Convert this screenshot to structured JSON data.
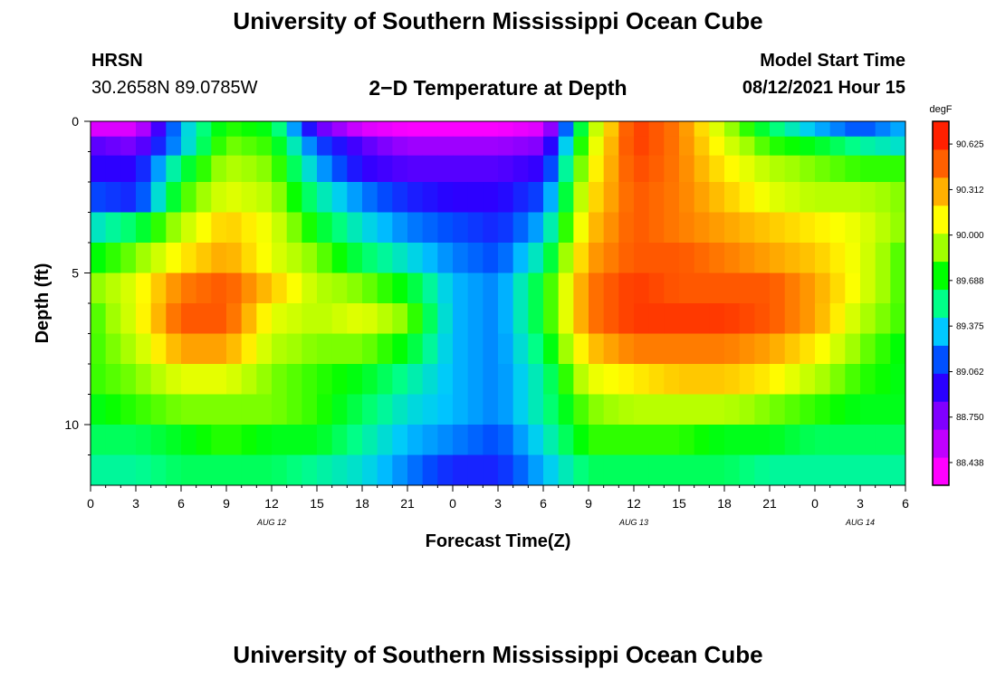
{
  "page": {
    "title_top": "University of Southern Mississippi Ocean Cube",
    "title_bottom": "University of Southern Mississippi Ocean Cube",
    "station_name": "HRSN",
    "station_coords": "30.2658N  89.0785W",
    "plot_title": "2−D Temperature at Depth",
    "model_label": "Model Start Time",
    "model_time": "08/12/2021 Hour 15"
  },
  "chart_data": {
    "type": "heatmap",
    "title": "2-D Temperature at Depth",
    "xlabel": "Forecast Time(Z)",
    "ylabel": "Depth (ft)",
    "x_range_hours": [
      0,
      54
    ],
    "y_range_ft": [
      0,
      12
    ],
    "x_ticks": [
      "0",
      "3",
      "6",
      "9",
      "12",
      "15",
      "18",
      "21",
      "0",
      "3",
      "6",
      "9",
      "12",
      "15",
      "18",
      "21",
      "0",
      "3",
      "6"
    ],
    "y_ticks": [
      "0",
      "5",
      "10"
    ],
    "date_labels": [
      {
        "text": "AUG 12",
        "hour": 12
      },
      {
        "text": "AUG 13",
        "hour": 36
      },
      {
        "text": "AUG 14",
        "hour": 51
      }
    ],
    "colorbar": {
      "unit": "degF",
      "min": 88.282,
      "max": 90.781,
      "tick_values": [
        "88.438",
        "88.750",
        "89.062",
        "89.375",
        "89.688",
        "90.000",
        "90.312",
        "90.625"
      ],
      "colors": [
        "#ff00ff",
        "#c000ff",
        "#8000ff",
        "#2a00ff",
        "#0050ff",
        "#00c8ff",
        "#00ff88",
        "#00ff00",
        "#a0ff00",
        "#ffff00",
        "#ffb000",
        "#ff6000",
        "#ff2000"
      ]
    },
    "depth_layers": [
      0.25,
      0.75,
      1.5,
      2.5,
      3.5,
      4.5,
      5.5,
      6.5,
      7.5,
      8.5,
      9.5,
      10.5,
      11.5
    ],
    "time_hours": [
      0,
      3,
      6,
      9,
      12,
      15,
      18,
      21,
      24,
      27,
      30,
      33,
      36,
      39,
      42,
      45,
      48,
      51,
      54
    ],
    "temperature_degF": [
      [
        88.4,
        88.4,
        89.3,
        89.8,
        89.7,
        88.8,
        88.4,
        88.3,
        88.3,
        88.3,
        88.4,
        89.9,
        90.7,
        90.5,
        90.0,
        89.6,
        89.3,
        89.1,
        89.3
      ],
      [
        88.8,
        88.7,
        89.3,
        89.9,
        89.8,
        89.1,
        88.8,
        88.6,
        88.6,
        88.6,
        88.7,
        90.0,
        90.7,
        90.5,
        90.1,
        89.8,
        89.7,
        89.5,
        89.4
      ],
      [
        88.9,
        88.9,
        89.6,
        90.0,
        89.9,
        89.3,
        88.9,
        88.8,
        88.8,
        88.8,
        88.9,
        90.1,
        90.65,
        90.5,
        90.2,
        90.0,
        89.9,
        89.8,
        89.8
      ],
      [
        89.1,
        89.0,
        89.8,
        90.1,
        90.0,
        89.5,
        89.2,
        89.0,
        88.9,
        88.9,
        89.1,
        90.2,
        90.6,
        90.5,
        90.3,
        90.1,
        90.0,
        90.0,
        89.9
      ],
      [
        89.4,
        89.6,
        90.0,
        90.3,
        90.1,
        89.7,
        89.4,
        89.2,
        89.1,
        89.0,
        89.3,
        90.3,
        90.6,
        90.5,
        90.4,
        90.3,
        90.2,
        90.1,
        89.9
      ],
      [
        89.7,
        89.9,
        90.2,
        90.4,
        90.1,
        89.9,
        89.6,
        89.4,
        89.2,
        89.1,
        89.5,
        90.4,
        90.6,
        90.6,
        90.5,
        90.4,
        90.3,
        90.1,
        89.8
      ],
      [
        89.9,
        90.1,
        90.5,
        90.6,
        90.3,
        90.0,
        89.9,
        89.7,
        89.3,
        89.2,
        89.7,
        90.5,
        90.7,
        90.6,
        90.6,
        90.6,
        90.4,
        90.1,
        89.8
      ],
      [
        89.8,
        90.1,
        90.6,
        90.6,
        90.1,
        90.0,
        90.1,
        89.9,
        89.3,
        89.2,
        89.7,
        90.5,
        90.7,
        90.7,
        90.7,
        90.6,
        90.4,
        90.0,
        89.8
      ],
      [
        89.8,
        90.0,
        90.4,
        90.4,
        90.0,
        89.9,
        89.9,
        89.7,
        89.3,
        89.2,
        89.6,
        90.3,
        90.5,
        90.5,
        90.5,
        90.4,
        90.2,
        89.9,
        89.7
      ],
      [
        89.8,
        89.9,
        90.1,
        90.1,
        89.9,
        89.8,
        89.7,
        89.5,
        89.3,
        89.2,
        89.5,
        90.1,
        90.2,
        90.3,
        90.3,
        90.2,
        90.0,
        89.8,
        89.7
      ],
      [
        89.7,
        89.8,
        89.9,
        89.9,
        89.9,
        89.8,
        89.6,
        89.4,
        89.3,
        89.2,
        89.5,
        89.9,
        90.0,
        90.0,
        90.0,
        89.9,
        89.8,
        89.7,
        89.7
      ],
      [
        89.6,
        89.6,
        89.7,
        89.8,
        89.7,
        89.7,
        89.5,
        89.3,
        89.2,
        89.1,
        89.4,
        89.8,
        89.8,
        89.8,
        89.7,
        89.7,
        89.6,
        89.6,
        89.6
      ],
      [
        89.5,
        89.5,
        89.6,
        89.6,
        89.6,
        89.5,
        89.4,
        89.2,
        89.0,
        89.0,
        89.3,
        89.6,
        89.6,
        89.6,
        89.6,
        89.5,
        89.5,
        89.5,
        89.5
      ]
    ]
  }
}
